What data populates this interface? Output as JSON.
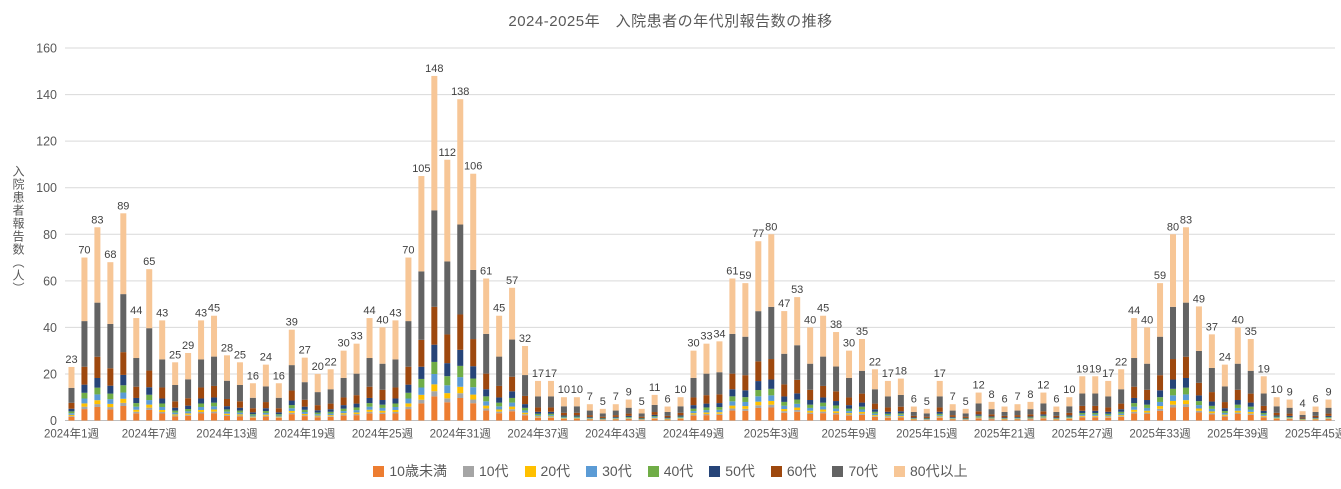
{
  "chart_data": {
    "type": "stacked-bar",
    "title": "2024-2025年　入院患者の年代別報告数の推移",
    "ylabel": "入院患者報告数（人）",
    "ylim": [
      0,
      160
    ],
    "yticks": [
      0,
      20,
      40,
      60,
      80,
      100,
      120,
      140,
      160
    ],
    "grid": "horizontal",
    "legend_position": "bottom",
    "x_tick_every": 6,
    "x_tick_labels": [
      "2024年1週",
      "2024年7週",
      "2024年13週",
      "2024年19週",
      "2024年25週",
      "2024年31週",
      "2024年37週",
      "2024年43週",
      "2024年49週",
      "2025年3週",
      "2025年9週",
      "2025年15週",
      "2025年21週",
      "2025年27週",
      "2025年33週",
      "2025年39週",
      "2025年45週"
    ],
    "totals": [
      23,
      70,
      83,
      68,
      89,
      44,
      65,
      43,
      25,
      29,
      43,
      45,
      28,
      25,
      16,
      24,
      16,
      39,
      27,
      20,
      22,
      30,
      33,
      44,
      40,
      43,
      70,
      105,
      148,
      112,
      138,
      106,
      61,
      45,
      57,
      32,
      17,
      17,
      10,
      10,
      7,
      5,
      7,
      9,
      5,
      11,
      6,
      10,
      30,
      33,
      34,
      61,
      59,
      77,
      80,
      47,
      53,
      40,
      45,
      38,
      30,
      35,
      22,
      17,
      18,
      6,
      5,
      17,
      7,
      5,
      12,
      8,
      6,
      7,
      8,
      12,
      6,
      10,
      19,
      19,
      17,
      22,
      44,
      40,
      59,
      80,
      83,
      49,
      37,
      24,
      40,
      35,
      19,
      10,
      9,
      4,
      6,
      9
    ],
    "series": [
      {
        "name": "10歳未満",
        "color": "#ED7D31",
        "fraction": 0.07
      },
      {
        "name": "10代",
        "color": "#A5A5A5",
        "fraction": 0.015
      },
      {
        "name": "20代",
        "color": "#FFC000",
        "fraction": 0.02
      },
      {
        "name": "30代",
        "color": "#5B9BD5",
        "fraction": 0.03
      },
      {
        "name": "40代",
        "color": "#70AD47",
        "fraction": 0.035
      },
      {
        "name": "50代",
        "color": "#264478",
        "fraction": 0.05
      },
      {
        "name": "60代",
        "color": "#9E480E",
        "fraction": 0.11
      },
      {
        "name": "70代",
        "color": "#636363",
        "fraction": 0.28
      },
      {
        "name": "80代以上",
        "color": "#F7C696",
        "fraction": 0.39
      }
    ],
    "colors": {
      "gridline": "#D9D9D9",
      "axis_line": "#BFBFBF",
      "axis_text": "#595959",
      "data_label_text": "#404040",
      "title_text": "#595959",
      "background": "#FFFFFF"
    }
  }
}
